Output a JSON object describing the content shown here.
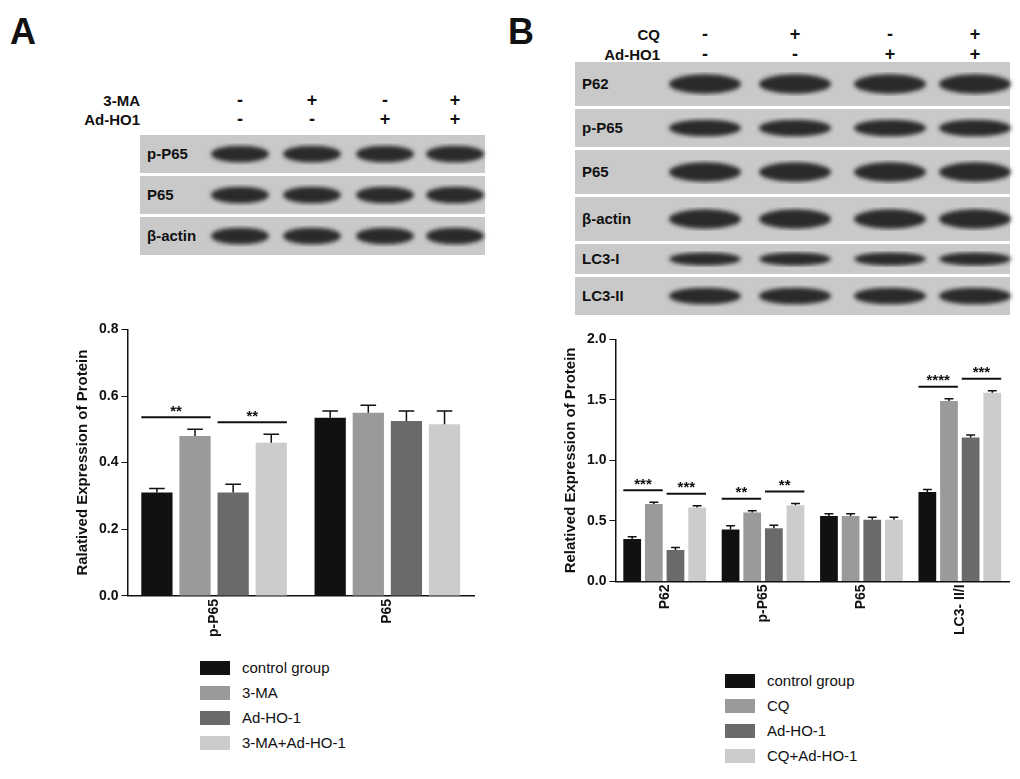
{
  "panels": [
    {
      "letter": "A",
      "blot": {
        "treatments": [
          {
            "name": "3-MA",
            "signs": [
              "-",
              "+",
              "-",
              "+"
            ]
          },
          {
            "name": "Ad-HO1",
            "signs": [
              "-",
              "-",
              "+",
              "+"
            ]
          }
        ],
        "rows": [
          "p-P65",
          "P65",
          "β-actin"
        ]
      }
    },
    {
      "letter": "B",
      "blot": {
        "treatments": [
          {
            "name": "CQ",
            "signs": [
              "-",
              "+",
              "-",
              "+"
            ]
          },
          {
            "name": "Ad-HO1",
            "signs": [
              "-",
              "-",
              "+",
              "+"
            ]
          }
        ],
        "rows": [
          "P62",
          "p-P65",
          "P65",
          "β-actin",
          "LC3-I",
          "LC3-II"
        ]
      }
    }
  ],
  "chart_data": [
    {
      "type": "bar",
      "y_label": "Ralatived Expression of Protein",
      "categories": [
        "p-P65",
        "P65"
      ],
      "series": [
        {
          "name": "control group",
          "color": "#111111",
          "values": [
            0.31,
            0.535
          ],
          "errors": [
            0.012,
            0.02
          ]
        },
        {
          "name": "3-MA",
          "color": "#9a9a9a",
          "values": [
            0.48,
            0.55
          ],
          "errors": [
            0.02,
            0.022
          ]
        },
        {
          "name": "Ad-HO-1",
          "color": "#6a6a6a",
          "values": [
            0.31,
            0.525
          ],
          "errors": [
            0.025,
            0.03
          ]
        },
        {
          "name": "3-MA+Ad-HO-1",
          "color": "#cccccc",
          "values": [
            0.46,
            0.515
          ],
          "errors": [
            0.025,
            0.04
          ]
        }
      ],
      "ylim": [
        0,
        0.8
      ],
      "yticks": [
        {
          "value": 0,
          "label": "0.0"
        },
        0.2,
        0.4,
        0.6,
        0.8
      ],
      "grid": false,
      "legend": "bottom",
      "annotations": [
        {
          "category": "p-P65",
          "from": "control group",
          "to": "3-MA",
          "text": "**"
        },
        {
          "category": "p-P65",
          "from": "Ad-HO-1",
          "to": "3-MA+Ad-HO-1",
          "text": "**"
        }
      ]
    },
    {
      "type": "bar",
      "y_label": "Relatived Expression of Protein",
      "categories": [
        "P62",
        "p-P65",
        "P65",
        "LC3- II/I"
      ],
      "series": [
        {
          "name": "control group",
          "color": "#111111",
          "values": [
            0.35,
            0.43,
            0.54,
            0.74
          ],
          "errors": [
            0.02,
            0.03,
            0.02,
            0.02
          ]
        },
        {
          "name": "CQ",
          "color": "#9a9a9a",
          "values": [
            0.64,
            0.57,
            0.54,
            1.49
          ],
          "errors": [
            0.015,
            0.015,
            0.02,
            0.02
          ]
        },
        {
          "name": "Ad-HO-1",
          "color": "#6a6a6a",
          "values": [
            0.26,
            0.44,
            0.51,
            1.19
          ],
          "errors": [
            0.02,
            0.025,
            0.02,
            0.02
          ]
        },
        {
          "name": "CQ+Ad-HO-1",
          "color": "#cccccc",
          "values": [
            0.61,
            0.63,
            0.51,
            1.56
          ],
          "errors": [
            0.015,
            0.015,
            0.02,
            0.015
          ]
        }
      ],
      "ylim": [
        0,
        2
      ],
      "yticks": [
        {
          "value": 0,
          "label": "0.0"
        },
        0.5,
        {
          "value": 1,
          "label": "1.0"
        },
        1.5,
        {
          "value": 2,
          "label": "2.0"
        }
      ],
      "grid": false,
      "legend": "bottom",
      "annotations": [
        {
          "category": "P62",
          "from": "control group",
          "to": "CQ",
          "text": "***"
        },
        {
          "category": "P62",
          "from": "Ad-HO-1",
          "to": "CQ+Ad-HO-1",
          "text": "***"
        },
        {
          "category": "p-P65",
          "from": "control group",
          "to": "CQ",
          "text": "**"
        },
        {
          "category": "p-P65",
          "from": "Ad-HO-1",
          "to": "CQ+Ad-HO-1",
          "text": "**"
        },
        {
          "category": "LC3- II/I",
          "from": "control group",
          "to": "CQ",
          "text": "****"
        },
        {
          "category": "LC3- II/I",
          "from": "Ad-HO-1",
          "to": "CQ+Ad-HO-1",
          "text": "***"
        }
      ]
    }
  ]
}
